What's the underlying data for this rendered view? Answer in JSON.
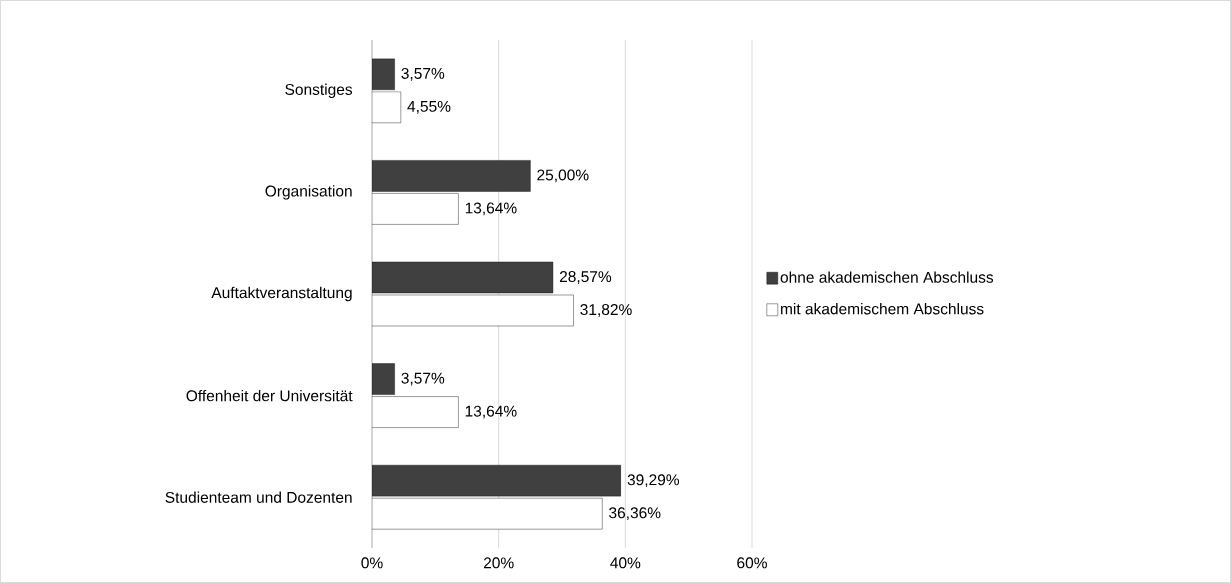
{
  "chart_data": {
    "type": "bar",
    "orientation": "horizontal",
    "categories": [
      "Sonstiges",
      "Organisation",
      "Auftaktveranstaltung",
      "Offenheit der Universität",
      "Studienteam und Dozenten"
    ],
    "series": [
      {
        "name": "ohne akademischen Abschluss",
        "color": "#404040",
        "values": [
          3.57,
          25.0,
          28.57,
          3.57,
          39.29
        ],
        "value_labels": [
          "3,57%",
          "25,00%",
          "28,57%",
          "3,57%",
          "39,29%"
        ]
      },
      {
        "name": "mit akademischem Abschluss",
        "color": "#ffffff",
        "values": [
          4.55,
          13.64,
          31.82,
          13.64,
          36.36
        ],
        "value_labels": [
          "4,55%",
          "13,64%",
          "31,82%",
          "13,64%",
          "36,36%"
        ]
      }
    ],
    "xlim": [
      0,
      60
    ],
    "xticks": [
      {
        "value": 0,
        "label": "0%"
      },
      {
        "value": 20,
        "label": "20%"
      },
      {
        "value": 40,
        "label": "40%"
      },
      {
        "value": 60,
        "label": "60%"
      }
    ],
    "grid": "x",
    "legend": "right"
  }
}
